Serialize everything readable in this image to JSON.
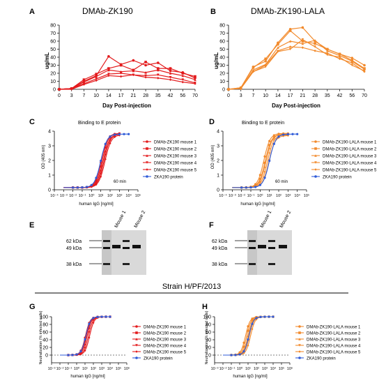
{
  "colors": {
    "red": "#e31a1c",
    "orange": "#f28a2c",
    "blue": "#2f5bd8",
    "axis": "#000000"
  },
  "panels": {
    "A": {
      "letter": "A",
      "title": "DMAb-ZK190",
      "ylabel": "ug/mL",
      "xlabel": "Day Post-injection"
    },
    "B": {
      "letter": "B",
      "title": "DMAb-ZK190-LALA",
      "ylabel": "ug/mL",
      "xlabel": "Day Post-injection"
    },
    "C": {
      "letter": "C",
      "title": "Binding to E protein",
      "ylabel": "OD (405 nm)",
      "xlabel": "human IgG [ng/ml]",
      "annotation": "60 min"
    },
    "D": {
      "letter": "D",
      "title": "Binding to E protein",
      "ylabel": "OD (405 nm)",
      "xlabel": "human IgG [ng/ml]",
      "annotation": "60 min"
    },
    "E": {
      "letter": "E",
      "lanes": [
        "Mouse 1",
        "Mouse 2"
      ],
      "markers": [
        "62 kDa",
        "49 kDa",
        "38 kDa"
      ]
    },
    "F": {
      "letter": "F",
      "lanes": [
        "Mouse 1",
        "Mouse 2"
      ],
      "markers": [
        "62 kDa",
        "49 kDa",
        "38 kDa"
      ]
    },
    "G": {
      "letter": "G",
      "ylabel": "Neutralization (% infected cells)",
      "xlabel": "human IgG [ng/ml]"
    },
    "H": {
      "letter": "H",
      "ylabel": "Neutralization (% infected cells)",
      "xlabel": "human IgG [ng/ml]"
    }
  },
  "strain_title": "Strain H/PF/2013",
  "legend_red": [
    "DMAb-ZK190 mouse 1",
    "DMAb-ZK190 mouse 2",
    "DMAb-ZK190 mouse 3",
    "DMAb-ZK190 mouse 4",
    "DMAb-ZK190 mouse 5",
    "ZKA190 protein"
  ],
  "legend_orange": [
    "DMAb-ZK190-LALA mouse 1",
    "DMAb-ZK190-LALA mouse 2",
    "DMAb-ZK190-LALA mouse 3",
    "DMAb-ZK190-LALA mouse 4",
    "DMAb-ZK190-LALA mouse 5",
    "ZKA190 protein"
  ],
  "chart_data": [
    {
      "panel": "A",
      "type": "line",
      "x": [
        0,
        3,
        7,
        10,
        14,
        17,
        21,
        28,
        35,
        42,
        56,
        70
      ],
      "x_ticks": [
        "0",
        "3",
        "7",
        "10",
        "14",
        "17",
        "21",
        "28",
        "35",
        "42",
        "56",
        "70"
      ],
      "y_ticks": [
        "0",
        "10",
        "20",
        "30",
        "40",
        "50",
        "60",
        "70",
        "80"
      ],
      "ylim": [
        0,
        80
      ],
      "series": [
        {
          "values": [
            0,
            1,
            10,
            17,
            41,
            31,
            36,
            30,
            33,
            23,
            21,
            14
          ]
        },
        {
          "values": [
            0,
            1,
            12,
            19,
            26,
            30,
            24,
            34,
            26,
            26,
            20,
            16
          ]
        },
        {
          "values": [
            0,
            1,
            9,
            16,
            24,
            22,
            23,
            21,
            24,
            20,
            17,
            12
          ]
        },
        {
          "values": [
            0,
            1,
            7,
            13,
            19,
            20,
            18,
            17,
            18,
            15,
            12,
            8
          ]
        },
        {
          "values": [
            0,
            0,
            6,
            11,
            17,
            16,
            18,
            15,
            14,
            12,
            9,
            7
          ]
        }
      ]
    },
    {
      "panel": "B",
      "type": "line",
      "x": [
        0,
        3,
        7,
        10,
        14,
        17,
        21,
        28,
        35,
        42,
        56,
        70
      ],
      "x_ticks": [
        "0",
        "3",
        "7",
        "10",
        "14",
        "17",
        "21",
        "28",
        "35",
        "42",
        "56",
        "70"
      ],
      "y_ticks": [
        "0",
        "10",
        "20",
        "30",
        "40",
        "50",
        "60",
        "70",
        "80"
      ],
      "ylim": [
        0,
        80
      ],
      "series": [
        {
          "values": [
            0,
            2,
            28,
            35,
            58,
            75,
            77,
            60,
            50,
            44,
            39,
            30
          ]
        },
        {
          "values": [
            0,
            2,
            27,
            38,
            56,
            73,
            60,
            57,
            50,
            44,
            36,
            26
          ]
        },
        {
          "values": [
            0,
            1,
            24,
            31,
            52,
            60,
            57,
            61,
            48,
            42,
            35,
            25
          ]
        },
        {
          "values": [
            0,
            1,
            22,
            28,
            47,
            50,
            62,
            53,
            43,
            40,
            30,
            23
          ]
        },
        {
          "values": [
            0,
            1,
            22,
            30,
            48,
            53,
            52,
            48,
            45,
            38,
            33,
            22
          ]
        }
      ]
    },
    {
      "panel": "C",
      "type": "line",
      "x_ticks": [
        "10⁻⁴",
        "10⁻³",
        "10⁻²",
        "10⁻¹",
        "10⁰",
        "10¹",
        "10²",
        "10³",
        "10⁴",
        "10⁵"
      ],
      "y_ticks": [
        "0",
        "1",
        "2",
        "3",
        "4"
      ],
      "xlog": [
        -4,
        5
      ],
      "ylim": [
        0,
        4
      ],
      "series": [
        {
          "name": "DMAb-ZK190 mouse 1",
          "ec50_log": 1.05,
          "top": 3.85
        },
        {
          "name": "DMAb-ZK190 mouse 2",
          "ec50_log": 1.15,
          "top": 3.85
        },
        {
          "name": "DMAb-ZK190 mouse 3",
          "ec50_log": 1.25,
          "top": 3.8
        },
        {
          "name": "DMAb-ZK190 mouse 4",
          "ec50_log": 1.35,
          "top": 3.8
        },
        {
          "name": "DMAb-ZK190 mouse 5",
          "ec50_log": 1.45,
          "top": 3.75
        },
        {
          "name": "ZKA190 protein",
          "ec50_log": 1.0,
          "top": 3.8,
          "xmax_log": 4
        }
      ]
    },
    {
      "panel": "D",
      "type": "line",
      "x_ticks": [
        "10⁻⁴",
        "10⁻³",
        "10⁻²",
        "10⁻¹",
        "10⁰",
        "10¹",
        "10²",
        "10³",
        "10⁴",
        "10⁵"
      ],
      "y_ticks": [
        "0",
        "1",
        "2",
        "3",
        "4"
      ],
      "xlog": [
        -4,
        5
      ],
      "ylim": [
        0,
        4
      ],
      "series": [
        {
          "name": "DMAb-ZK190-LALA mouse 1",
          "ec50_log": 0.4,
          "top": 3.85
        },
        {
          "name": "DMAb-ZK190-LALA mouse 2",
          "ec50_log": 0.55,
          "top": 3.8
        },
        {
          "name": "DMAb-ZK190-LALA mouse 3",
          "ec50_log": 0.65,
          "top": 3.8
        },
        {
          "name": "DMAb-ZK190-LALA mouse 4",
          "ec50_log": 0.8,
          "top": 3.75
        },
        {
          "name": "DMAb-ZK190-LALA mouse 5",
          "ec50_log": 0.95,
          "top": 3.7
        },
        {
          "name": "ZKA190 protein",
          "ec50_log": 1.0,
          "top": 3.8,
          "xmax_log": 4
        }
      ]
    },
    {
      "panel": "G",
      "type": "line",
      "x_ticks": [
        "10⁻³",
        "10⁻²",
        "10⁻¹",
        "10⁰",
        "10¹",
        "10²",
        "10³",
        "10⁴",
        "10⁵",
        "10⁶"
      ],
      "y_ticks": [
        "0",
        "20",
        "40",
        "60",
        "80",
        "100"
      ],
      "xlog": [
        -3,
        6
      ],
      "ylim": [
        -20,
        100
      ],
      "series": [
        {
          "name": "DMAb-ZK190 mouse 1",
          "ec50_log": 1.05,
          "top": 100
        },
        {
          "name": "DMAb-ZK190 mouse 2",
          "ec50_log": 1.15,
          "top": 100
        },
        {
          "name": "DMAb-ZK190 mouse 3",
          "ec50_log": 1.25,
          "top": 100
        },
        {
          "name": "DMAb-ZK190 mouse 4",
          "ec50_log": 1.4,
          "top": 100
        },
        {
          "name": "DMAb-ZK190 mouse 5",
          "ec50_log": 1.55,
          "top": 100
        },
        {
          "name": "ZKA190 protein",
          "ec50_log": 1.1,
          "top": 100,
          "xmax_log": 4
        }
      ]
    },
    {
      "panel": "H",
      "type": "line",
      "x_ticks": [
        "10⁻³",
        "10⁻²",
        "10⁻¹",
        "10⁰",
        "10¹",
        "10²",
        "10³",
        "10⁴",
        "10⁵",
        "10⁶"
      ],
      "y_ticks": [
        "0",
        "20",
        "40",
        "60",
        "80",
        "100"
      ],
      "xlog": [
        -3,
        6
      ],
      "ylim": [
        -20,
        100
      ],
      "series": [
        {
          "name": "DMAb-ZK190-LALA mouse 1",
          "ec50_log": 0.7,
          "top": 100
        },
        {
          "name": "DMAb-ZK190-LALA mouse 2",
          "ec50_log": 0.85,
          "top": 100
        },
        {
          "name": "DMAb-ZK190-LALA mouse 3",
          "ec50_log": 1.0,
          "top": 100
        },
        {
          "name": "DMAb-ZK190-LALA mouse 4",
          "ec50_log": 1.15,
          "top": 100
        },
        {
          "name": "DMAb-ZK190-LALA mouse 5",
          "ec50_log": 1.3,
          "top": 100
        },
        {
          "name": "ZKA190 protein",
          "ec50_log": 1.1,
          "top": 100,
          "xmax_log": 4
        }
      ]
    }
  ]
}
